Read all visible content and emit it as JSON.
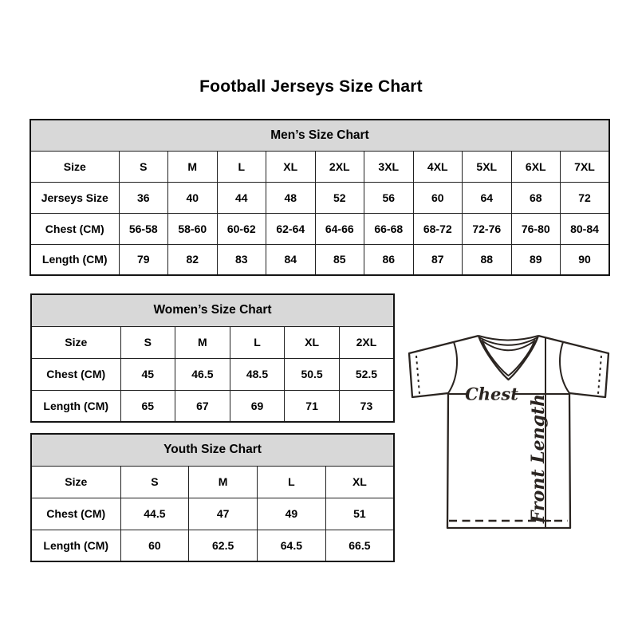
{
  "page": {
    "title": "Football Jerseys Size Chart"
  },
  "tables": {
    "men": {
      "header": "Men’s Size Chart",
      "rows": [
        {
          "label": "Size",
          "values": [
            "S",
            "M",
            "L",
            "XL",
            "2XL",
            "3XL",
            "4XL",
            "5XL",
            "6XL",
            "7XL"
          ]
        },
        {
          "label": "Jerseys Size",
          "values": [
            "36",
            "40",
            "44",
            "48",
            "52",
            "56",
            "60",
            "64",
            "68",
            "72"
          ]
        },
        {
          "label": "Chest (CM)",
          "values": [
            "56-58",
            "58-60",
            "60-62",
            "62-64",
            "64-66",
            "66-68",
            "68-72",
            "72-76",
            "76-80",
            "80-84"
          ]
        },
        {
          "label": "Length (CM)",
          "values": [
            "79",
            "82",
            "83",
            "84",
            "85",
            "86",
            "87",
            "88",
            "89",
            "90"
          ]
        }
      ]
    },
    "women": {
      "header": "Women’s Size Chart",
      "rows": [
        {
          "label": "Size",
          "values": [
            "S",
            "M",
            "L",
            "XL",
            "2XL"
          ]
        },
        {
          "label": "Chest (CM)",
          "values": [
            "45",
            "46.5",
            "48.5",
            "50.5",
            "52.5"
          ]
        },
        {
          "label": "Length (CM)",
          "values": [
            "65",
            "67",
            "69",
            "71",
            "73"
          ]
        }
      ]
    },
    "youth": {
      "header": "Youth Size Chart",
      "rows": [
        {
          "label": "Size",
          "values": [
            "S",
            "M",
            "L",
            "XL"
          ]
        },
        {
          "label": "Chest (CM)",
          "values": [
            "44.5",
            "47",
            "49",
            "51"
          ]
        },
        {
          "label": "Length (CM)",
          "values": [
            "60",
            "62.5",
            "64.5",
            "66.5"
          ]
        }
      ]
    }
  },
  "diagram": {
    "chest_label": "Chest",
    "front_length_label": "Front Length"
  },
  "colors": {
    "header_bg": "#d8d8d8",
    "table_border": "#212121",
    "text": "#000000",
    "diagram_line": "#2a2420"
  }
}
